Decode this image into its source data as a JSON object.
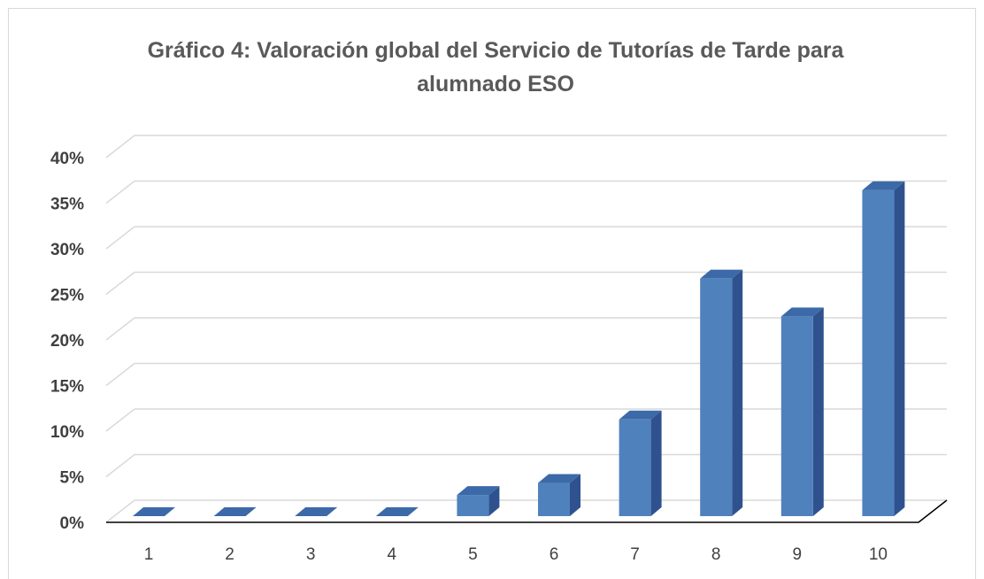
{
  "chart_data": {
    "type": "bar3d",
    "title": "Gráfico 4: Valoración global del Servicio de Tutorías de Tarde para alumnado ESO",
    "categories": [
      "1",
      "2",
      "3",
      "4",
      "5",
      "6",
      "7",
      "8",
      "9",
      "10"
    ],
    "values": [
      0,
      0,
      0,
      0,
      2.3,
      3.6,
      10.5,
      25.8,
      21.7,
      35.4
    ],
    "color": "#4f81bd",
    "ylim": [
      0,
      40
    ],
    "yticks": [
      {
        "value": 0,
        "label": "0%"
      },
      {
        "value": 5,
        "label": "5%"
      },
      {
        "value": 10,
        "label": "10%"
      },
      {
        "value": 15,
        "label": "15%"
      },
      {
        "value": 20,
        "label": "20%"
      },
      {
        "value": 25,
        "label": "25%"
      },
      {
        "value": 30,
        "label": "30%"
      },
      {
        "value": 35,
        "label": "35%"
      },
      {
        "value": 40,
        "label": "40%"
      }
    ],
    "grid": true
  }
}
